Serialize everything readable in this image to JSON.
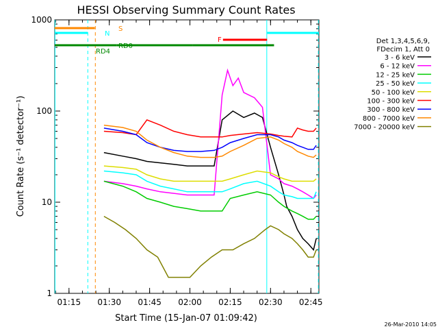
{
  "chart_data": {
    "type": "line",
    "title": "HESSI Observing Summary Count Rates",
    "xlabel": "Start Time (15-Jan-07 01:09:42)",
    "ylabel": "Count Rate (s⁻¹ detector⁻¹)",
    "ylim": [
      1,
      1000
    ],
    "yscale": "log",
    "xlim_minutes": [
      69.7,
      168
    ],
    "x_ticks": [
      "01:15",
      "01:30",
      "01:45",
      "02:00",
      "02:15",
      "02:30",
      "02:45"
    ],
    "y_ticks": [
      "1",
      "10",
      "100",
      "1000"
    ],
    "grid": false,
    "legend_position": "right",
    "legend_header": [
      "Det 1,3,4,5,6,9,",
      "FDecim 1, Att 0"
    ],
    "timestamp": "26-Mar-2010 14:05",
    "series": [
      {
        "name": "3 - 6 keV",
        "color": "#000000",
        "x": [
          88,
          95,
          100,
          104,
          109,
          114,
          119,
          124,
          129,
          132,
          136,
          140,
          144,
          147,
          150,
          153,
          155,
          156,
          158,
          160,
          162,
          164,
          166,
          167
        ],
        "values": [
          35,
          32,
          30,
          28,
          27,
          26,
          25,
          25,
          25,
          80,
          100,
          85,
          95,
          85,
          40,
          20,
          12,
          9,
          7,
          5,
          4,
          3.5,
          3,
          4
        ]
      },
      {
        "name": "6 - 12 keV",
        "color": "#ff00ff",
        "x": [
          88,
          95,
          100,
          104,
          109,
          114,
          119,
          124,
          129,
          132,
          134,
          136,
          138,
          140,
          144,
          147,
          150,
          153,
          155,
          158,
          160,
          162,
          164,
          166,
          167
        ],
        "values": [
          17,
          16,
          15,
          14,
          13,
          12.5,
          12,
          12,
          12,
          150,
          280,
          190,
          230,
          160,
          140,
          110,
          20,
          18,
          16,
          15,
          14,
          13,
          12,
          11,
          12
        ]
      },
      {
        "name": "12 - 25 keV",
        "color": "#00cc00",
        "x": [
          88,
          95,
          100,
          104,
          109,
          114,
          119,
          124,
          129,
          132,
          135,
          140,
          145,
          150,
          153,
          155,
          158,
          160,
          162,
          164,
          166,
          167
        ],
        "values": [
          17,
          15,
          13,
          11,
          10,
          9,
          8.5,
          8,
          8,
          8,
          11,
          12,
          13,
          12,
          10,
          9,
          8,
          7.5,
          7,
          6.5,
          6.5,
          7
        ]
      },
      {
        "name": "25 - 50 keV",
        "color": "#00ffff",
        "x": [
          88,
          95,
          100,
          104,
          109,
          114,
          119,
          124,
          129,
          132,
          135,
          140,
          145,
          150,
          153,
          155,
          158,
          160,
          162,
          164,
          166,
          167
        ],
        "values": [
          22,
          21,
          20,
          17,
          15,
          14,
          13,
          13,
          13,
          13,
          14,
          16,
          17,
          15,
          13,
          12,
          11.5,
          11,
          11,
          11,
          11,
          13
        ]
      },
      {
        "name": "50 - 100 keV",
        "color": "#dddd00",
        "x": [
          88,
          95,
          100,
          104,
          109,
          114,
          119,
          124,
          129,
          132,
          135,
          140,
          145,
          150,
          153,
          155,
          158,
          160,
          162,
          164,
          166,
          167
        ],
        "values": [
          25,
          24,
          23,
          20,
          18,
          17,
          17,
          17,
          17,
          17,
          18,
          20,
          22,
          21,
          19,
          18,
          17,
          17,
          17,
          17,
          17,
          18
        ]
      },
      {
        "name": "100 - 300 keV",
        "color": "#ff0000",
        "x": [
          88,
          95,
          100,
          104,
          109,
          114,
          119,
          124,
          129,
          132,
          135,
          140,
          145,
          150,
          153,
          155,
          158,
          160,
          162,
          164,
          166,
          167
        ],
        "values": [
          60,
          58,
          55,
          80,
          70,
          60,
          55,
          52,
          52,
          52,
          54,
          56,
          58,
          56,
          54,
          53,
          52,
          65,
          62,
          60,
          60,
          65
        ]
      },
      {
        "name": "300 - 800 keV",
        "color": "#0000ff",
        "x": [
          88,
          95,
          100,
          104,
          109,
          114,
          119,
          124,
          129,
          132,
          135,
          140,
          145,
          150,
          153,
          155,
          158,
          160,
          162,
          164,
          166,
          167
        ],
        "values": [
          65,
          60,
          55,
          45,
          40,
          37,
          36,
          36,
          37,
          40,
          45,
          50,
          55,
          55,
          52,
          48,
          45,
          42,
          40,
          38,
          38,
          42
        ]
      },
      {
        "name": "800 - 7000 keV",
        "color": "#ff8800",
        "x": [
          88,
          95,
          100,
          104,
          109,
          114,
          119,
          124,
          129,
          132,
          135,
          140,
          145,
          150,
          153,
          155,
          158,
          160,
          162,
          164,
          166,
          167
        ],
        "values": [
          70,
          66,
          60,
          48,
          40,
          35,
          32,
          31,
          31,
          32,
          36,
          42,
          50,
          52,
          48,
          44,
          40,
          36,
          34,
          32,
          31,
          33
        ]
      },
      {
        "name": "7000 - 20000 keV",
        "color": "#808000",
        "x": [
          88,
          92,
          96,
          100,
          104,
          108,
          112,
          116,
          120,
          124,
          128,
          132,
          136,
          140,
          144,
          148,
          150,
          153,
          155,
          158,
          160,
          162,
          164,
          166,
          167
        ],
        "values": [
          7,
          6,
          5,
          4,
          3,
          2.5,
          1.5,
          1.5,
          1.5,
          2,
          2.5,
          3,
          3,
          3.5,
          4,
          5,
          5.5,
          5,
          4.5,
          4,
          3.5,
          3,
          2.5,
          2.5,
          3
        ]
      }
    ],
    "flags": [
      {
        "label": "S",
        "color": "#ff8800",
        "x_start": 69.7,
        "x_end": 84.6
      },
      {
        "label": "N",
        "color": "#00ffff",
        "x_start": 69.7,
        "x_end": 82.0
      },
      {
        "label": "F",
        "color": "#ff0000",
        "x_start": 132.3,
        "x_end": 148.7
      },
      {
        "label": "",
        "color": "#00ffff",
        "x_start": 148.7,
        "x_end": 168.0
      },
      {
        "label": "RD0",
        "color": "#008800",
        "segments": [
          [
            69.7,
            92.7
          ],
          [
            103.7,
            121.0
          ]
        ]
      },
      {
        "label": "RD4",
        "color": "#008800",
        "segments": [
          [
            92.7,
            103.7
          ],
          [
            121.0,
            151.3
          ]
        ]
      }
    ],
    "vertical_lines": [
      {
        "color": "#00ffff",
        "style": "solid",
        "x": 69.8
      },
      {
        "color": "#00ffff",
        "style": "dashed",
        "x": 82.0
      },
      {
        "color": "#ff8800",
        "style": "dashed",
        "x": 84.8
      },
      {
        "color": "#00ffff",
        "style": "solid",
        "x": 148.6
      },
      {
        "color": "#00ffff",
        "style": "dashed",
        "x": 167.8
      }
    ]
  }
}
